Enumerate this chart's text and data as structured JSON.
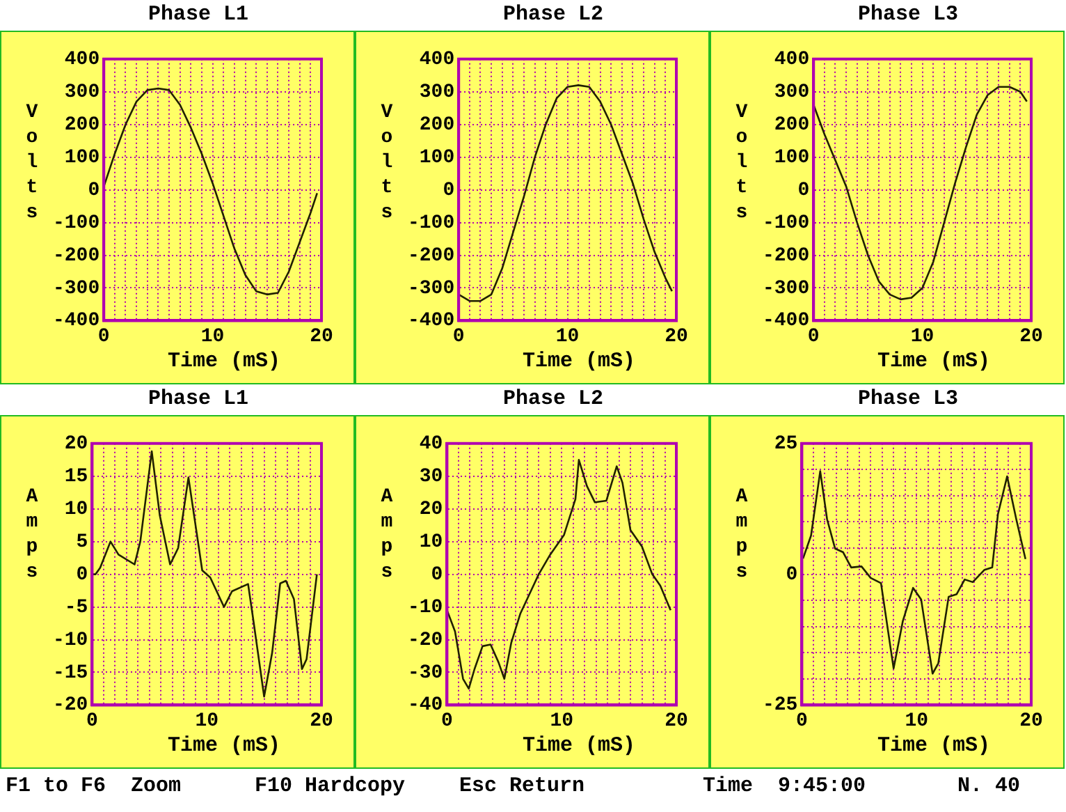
{
  "chart_data": [
    {
      "type": "line",
      "title": "Phase L1",
      "xlabel": "Time (mS)",
      "ylabel": "Volts",
      "color": "#202000",
      "grid": true,
      "xlim": [
        0,
        20
      ],
      "ylim": [
        -400,
        400
      ],
      "xticks": [
        0,
        {
          "value": 1,
          "label": null
        },
        {
          "value": 2,
          "label": null
        },
        {
          "value": 3,
          "label": null
        },
        {
          "value": 4,
          "label": null
        },
        {
          "value": 5,
          "label": null
        },
        {
          "value": 6,
          "label": null
        },
        {
          "value": 7,
          "label": null
        },
        {
          "value": 8,
          "label": null
        },
        {
          "value": 9,
          "label": null
        },
        10,
        {
          "value": 11,
          "label": null
        },
        {
          "value": 12,
          "label": null
        },
        {
          "value": 13,
          "label": null
        },
        {
          "value": 14,
          "label": null
        },
        {
          "value": 15,
          "label": null
        },
        {
          "value": 16,
          "label": null
        },
        {
          "value": 17,
          "label": null
        },
        {
          "value": 18,
          "label": null
        },
        {
          "value": 19,
          "label": null
        },
        20
      ],
      "yticks": [
        -400,
        -300,
        -200,
        -100,
        0,
        100,
        200,
        300,
        400
      ],
      "x": [
        0,
        1,
        2,
        3,
        4,
        5,
        6,
        7,
        8,
        9,
        10,
        11,
        12,
        13,
        14,
        15,
        16,
        17,
        18,
        19,
        19.6
      ],
      "values": [
        10,
        110,
        200,
        270,
        305,
        310,
        305,
        260,
        190,
        110,
        20,
        -80,
        -180,
        -260,
        -310,
        -320,
        -315,
        -250,
        -160,
        -70,
        -10
      ]
    },
    {
      "type": "line",
      "title": "Phase L2",
      "xlabel": "Time (mS)",
      "ylabel": "Volts",
      "color": "#202000",
      "grid": true,
      "xlim": [
        0,
        20
      ],
      "ylim": [
        -400,
        400
      ],
      "xticks": [
        0,
        {
          "value": 1,
          "label": null
        },
        {
          "value": 2,
          "label": null
        },
        {
          "value": 3,
          "label": null
        },
        {
          "value": 4,
          "label": null
        },
        {
          "value": 5,
          "label": null
        },
        {
          "value": 6,
          "label": null
        },
        {
          "value": 7,
          "label": null
        },
        {
          "value": 8,
          "label": null
        },
        {
          "value": 9,
          "label": null
        },
        10,
        {
          "value": 11,
          "label": null
        },
        {
          "value": 12,
          "label": null
        },
        {
          "value": 13,
          "label": null
        },
        {
          "value": 14,
          "label": null
        },
        {
          "value": 15,
          "label": null
        },
        {
          "value": 16,
          "label": null
        },
        {
          "value": 17,
          "label": null
        },
        {
          "value": 18,
          "label": null
        },
        {
          "value": 19,
          "label": null
        },
        20
      ],
      "yticks": [
        -400,
        -300,
        -200,
        -100,
        0,
        100,
        200,
        300,
        400
      ],
      "x": [
        0,
        1,
        2,
        3,
        4,
        5,
        6,
        7,
        8,
        9,
        10,
        11,
        12,
        13,
        14,
        15,
        16,
        17,
        18,
        19,
        19.6
      ],
      "values": [
        -320,
        -340,
        -340,
        -320,
        -240,
        -130,
        -20,
        100,
        200,
        280,
        315,
        320,
        315,
        270,
        200,
        110,
        20,
        -90,
        -190,
        -270,
        -310
      ]
    },
    {
      "type": "line",
      "title": "Phase L3",
      "xlabel": "Time (mS)",
      "ylabel": "Volts",
      "color": "#202000",
      "grid": true,
      "xlim": [
        0,
        20
      ],
      "ylim": [
        -400,
        400
      ],
      "xticks": [
        0,
        {
          "value": 1,
          "label": null
        },
        {
          "value": 2,
          "label": null
        },
        {
          "value": 3,
          "label": null
        },
        {
          "value": 4,
          "label": null
        },
        {
          "value": 5,
          "label": null
        },
        {
          "value": 6,
          "label": null
        },
        {
          "value": 7,
          "label": null
        },
        {
          "value": 8,
          "label": null
        },
        {
          "value": 9,
          "label": null
        },
        10,
        {
          "value": 11,
          "label": null
        },
        {
          "value": 12,
          "label": null
        },
        {
          "value": 13,
          "label": null
        },
        {
          "value": 14,
          "label": null
        },
        {
          "value": 15,
          "label": null
        },
        {
          "value": 16,
          "label": null
        },
        {
          "value": 17,
          "label": null
        },
        {
          "value": 18,
          "label": null
        },
        {
          "value": 19,
          "label": null
        },
        20
      ],
      "yticks": [
        -400,
        -300,
        -200,
        -100,
        0,
        100,
        200,
        300,
        400
      ],
      "x": [
        0,
        1,
        2,
        3,
        4,
        5,
        6,
        7,
        8,
        9,
        10,
        11,
        12,
        13,
        14,
        15,
        16,
        17,
        18,
        19,
        19.6
      ],
      "values": [
        260,
        170,
        90,
        10,
        -100,
        -200,
        -280,
        -320,
        -335,
        -330,
        -300,
        -220,
        -100,
        20,
        130,
        230,
        290,
        315,
        315,
        300,
        270
      ]
    },
    {
      "type": "line",
      "title": "Phase L1",
      "xlabel": "Time (mS)",
      "ylabel": "Amps",
      "color": "#202000",
      "grid": true,
      "xlim": [
        0,
        20
      ],
      "ylim": [
        -20,
        20
      ],
      "xticks": [
        0,
        {
          "value": 1,
          "label": null
        },
        {
          "value": 2,
          "label": null
        },
        {
          "value": 3,
          "label": null
        },
        {
          "value": 4,
          "label": null
        },
        {
          "value": 5,
          "label": null
        },
        {
          "value": 6,
          "label": null
        },
        {
          "value": 7,
          "label": null
        },
        {
          "value": 8,
          "label": null
        },
        {
          "value": 9,
          "label": null
        },
        10,
        {
          "value": 11,
          "label": null
        },
        {
          "value": 12,
          "label": null
        },
        {
          "value": 13,
          "label": null
        },
        {
          "value": 14,
          "label": null
        },
        {
          "value": 15,
          "label": null
        },
        {
          "value": 16,
          "label": null
        },
        {
          "value": 17,
          "label": null
        },
        {
          "value": 18,
          "label": null
        },
        {
          "value": 19,
          "label": null
        },
        20
      ],
      "yticks": [
        -20,
        -15,
        -10,
        -5,
        0,
        5,
        10,
        15,
        20
      ],
      "x": [
        0,
        0.3,
        0.7,
        1.6,
        2.3,
        3.7,
        4.2,
        5.2,
        5.9,
        6.8,
        7.5,
        8.4,
        9.6,
        10.3,
        11.5,
        12.2,
        13.6,
        14,
        15,
        15.7,
        16.4,
        16.9,
        17.6,
        18.3,
        18.7,
        19.6
      ],
      "values": [
        0,
        0,
        1,
        5,
        3,
        1.5,
        5,
        18.8,
        9,
        1.5,
        4,
        14.8,
        0.6,
        -0.5,
        -5,
        -2.6,
        -1.5,
        -6.3,
        -18.7,
        -12,
        -1.4,
        -1,
        -3.8,
        -14.5,
        -13,
        0
      ]
    },
    {
      "type": "line",
      "title": "Phase L2",
      "xlabel": "Time (mS)",
      "ylabel": "Amps",
      "color": "#202000",
      "grid": true,
      "xlim": [
        0,
        20
      ],
      "ylim": [
        -40,
        40
      ],
      "xticks": [
        0,
        {
          "value": 1,
          "label": null
        },
        {
          "value": 2,
          "label": null
        },
        {
          "value": 3,
          "label": null
        },
        {
          "value": 4,
          "label": null
        },
        {
          "value": 5,
          "label": null
        },
        {
          "value": 6,
          "label": null
        },
        {
          "value": 7,
          "label": null
        },
        {
          "value": 8,
          "label": null
        },
        {
          "value": 9,
          "label": null
        },
        10,
        {
          "value": 11,
          "label": null
        },
        {
          "value": 12,
          "label": null
        },
        {
          "value": 13,
          "label": null
        },
        {
          "value": 14,
          "label": null
        },
        {
          "value": 15,
          "label": null
        },
        {
          "value": 16,
          "label": null
        },
        {
          "value": 17,
          "label": null
        },
        {
          "value": 18,
          "label": null
        },
        {
          "value": 19,
          "label": null
        },
        20
      ],
      "yticks": [
        -40,
        -30,
        -20,
        -10,
        0,
        10,
        20,
        30,
        40
      ],
      "x": [
        0,
        0.7,
        1.4,
        1.9,
        2.4,
        3.1,
        3.8,
        4.5,
        5,
        5.6,
        6.4,
        8,
        9,
        10.2,
        11.2,
        11.5,
        12.2,
        12.9,
        13.9,
        14.8,
        15.3,
        16,
        17,
        17.9,
        18.6,
        19.5
      ],
      "values": [
        -11,
        -17.5,
        -32,
        -35,
        -29,
        -22,
        -21.5,
        -27,
        -32,
        -21,
        -12,
        0,
        6,
        12,
        23,
        35,
        27,
        22,
        22.5,
        33,
        28,
        13.5,
        8.5,
        0,
        -3.5,
        -11
      ]
    },
    {
      "type": "line",
      "title": "Phase L3",
      "xlabel": "Time (mS)",
      "ylabel": "Amps",
      "color": "#202000",
      "grid": true,
      "xlim": [
        0,
        20
      ],
      "ylim": [
        -25,
        25
      ],
      "xticks": [
        0,
        {
          "value": 1,
          "label": null
        },
        {
          "value": 2,
          "label": null
        },
        {
          "value": 3,
          "label": null
        },
        {
          "value": 4,
          "label": null
        },
        {
          "value": 5,
          "label": null
        },
        {
          "value": 6,
          "label": null
        },
        {
          "value": 7,
          "label": null
        },
        {
          "value": 8,
          "label": null
        },
        {
          "value": 9,
          "label": null
        },
        10,
        {
          "value": 11,
          "label": null
        },
        {
          "value": 12,
          "label": null
        },
        {
          "value": 13,
          "label": null
        },
        {
          "value": 14,
          "label": null
        },
        {
          "value": 15,
          "label": null
        },
        {
          "value": 16,
          "label": null
        },
        {
          "value": 17,
          "label": null
        },
        {
          "value": 18,
          "label": null
        },
        {
          "value": 19,
          "label": null
        },
        20
      ],
      "yticks": [
        -25,
        {
          "value": -20,
          "label": null
        },
        {
          "value": -15,
          "label": null
        },
        {
          "value": -10,
          "label": null
        },
        {
          "value": -5,
          "label": null
        },
        0,
        {
          "value": 5,
          "label": null
        },
        {
          "value": 10,
          "label": null
        },
        {
          "value": 15,
          "label": null
        },
        {
          "value": 20,
          "label": null
        },
        25
      ],
      "x": [
        0.1,
        0.8,
        1.6,
        2.2,
        2.9,
        3.6,
        4.3,
        5.2,
        6,
        6.9,
        8,
        8.8,
        9.7,
        10.4,
        11.4,
        11.9,
        12.8,
        13.5,
        14.2,
        14.9,
        15.9,
        16.6,
        17.1,
        17.9,
        18.7,
        19.5
      ],
      "values": [
        3,
        7.4,
        19.7,
        10.5,
        4.9,
        4.2,
        1.3,
        1.5,
        -0.7,
        -1.7,
        -18,
        -9,
        -2.6,
        -4.8,
        -19,
        -17,
        -4.3,
        -3.8,
        -1,
        -1.5,
        0.8,
        1.3,
        11.5,
        18.7,
        10.5,
        2.9
      ],
      "annotations": [
        "F1 to F6  Zoom",
        "F10 Hardcopy",
        "Esc Return",
        "Time  9:45:00",
        "N. 40"
      ]
    }
  ]
}
